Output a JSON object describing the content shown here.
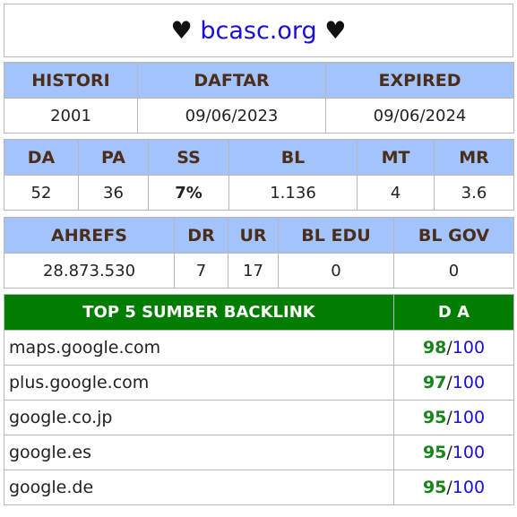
{
  "title": {
    "heart_left": "♥",
    "domain": "bcasc.org",
    "heart_right": "♥"
  },
  "registration": {
    "headers": [
      "HISTORI",
      "DAFTAR",
      "EXPIRED"
    ],
    "values": [
      "2001",
      "09/06/2023",
      "09/06/2024"
    ]
  },
  "metrics": {
    "headers": [
      "DA",
      "PA",
      "SS",
      "BL",
      "MT",
      "MR"
    ],
    "values": [
      "52",
      "36",
      "7%",
      "1.136",
      "4",
      "3.6"
    ]
  },
  "ahrefs": {
    "headers": [
      "AHREFS",
      "DR",
      "UR",
      "BL EDU",
      "BL GOV"
    ],
    "values": [
      "28.873.530",
      "7",
      "17",
      "0",
      "0"
    ]
  },
  "backlinks": {
    "header_source": "TOP 5 SUMBER BACKLINK",
    "header_da": "D A",
    "separator": "/",
    "max": "100",
    "rows": [
      {
        "source": "maps.google.com",
        "da": "98"
      },
      {
        "source": "plus.google.com",
        "da": "97"
      },
      {
        "source": "google.co.jp",
        "da": "95"
      },
      {
        "source": "google.es",
        "da": "95"
      },
      {
        "source": "google.de",
        "da": "95"
      }
    ]
  },
  "colors": {
    "header_bg": "#a4c3fc",
    "header_text": "#4a2e1a",
    "backlink_header_bg": "#027d02",
    "link_blue": "#1a0ed6",
    "value_green": "#18851a"
  }
}
